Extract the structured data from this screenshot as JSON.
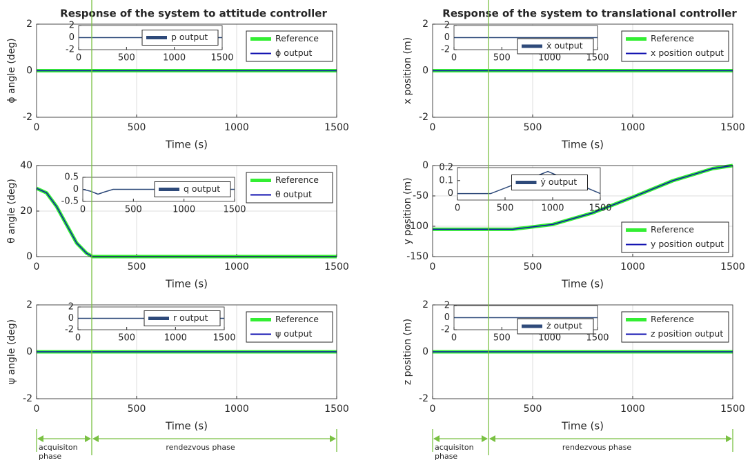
{
  "chart_data": [
    {
      "type": "line",
      "title": "Response of the system to attitude controller",
      "xlabel": "Time (s)",
      "ylabel": "ϕ angle (deg)",
      "xlim": [
        0,
        1500
      ],
      "xticks": [
        0,
        500,
        1000,
        1500
      ],
      "ylim": [
        -2,
        2
      ],
      "yticks": [
        -2,
        0,
        2
      ],
      "grid": true,
      "legend": "upper right",
      "series": [
        {
          "name": "Reference",
          "color": "#33ee33",
          "x": [
            0,
            1500
          ],
          "values": [
            0,
            0
          ]
        },
        {
          "name": "ϕ output",
          "color": "#1010b0",
          "x": [
            0,
            1500
          ],
          "values": [
            0,
            0
          ]
        }
      ]
    },
    {
      "type": "line",
      "xlim": [
        0,
        1500
      ],
      "xticks": [
        0,
        500,
        1000,
        1500
      ],
      "ylim": [
        -2,
        2
      ],
      "yticks": [
        -2,
        0,
        2
      ],
      "grid": false,
      "legend": "center right",
      "series": [
        {
          "name": "p output",
          "color": "#2e4a7a",
          "x": [
            0,
            1500
          ],
          "values": [
            0,
            0
          ]
        }
      ]
    },
    {
      "type": "line",
      "xlabel": "Time (s)",
      "ylabel": "θ angle (deg)",
      "xlim": [
        0,
        1500
      ],
      "xticks": [
        0,
        500,
        1000,
        1500
      ],
      "ylim": [
        0,
        40
      ],
      "yticks": [
        0,
        20,
        40
      ],
      "grid": true,
      "legend": "upper right",
      "series": [
        {
          "name": "Reference",
          "color": "#33ee33",
          "x": [
            0,
            50,
            100,
            150,
            200,
            250,
            280,
            300,
            1500
          ],
          "values": [
            30,
            28,
            22,
            14,
            6,
            1.5,
            0,
            0,
            0
          ]
        },
        {
          "name": "θ output",
          "color": "#1010b0",
          "x": [
            0,
            50,
            100,
            150,
            200,
            250,
            280,
            300,
            1500
          ],
          "values": [
            30,
            28,
            22,
            14,
            6,
            1.5,
            0,
            0,
            0
          ]
        }
      ]
    },
    {
      "type": "line",
      "xlim": [
        0,
        1500
      ],
      "xticks": [
        0,
        500,
        1000,
        1500
      ],
      "ylim": [
        -0.5,
        0.5
      ],
      "yticks": [
        -0.5,
        0,
        0.5
      ],
      "grid": false,
      "legend": "center right",
      "series": [
        {
          "name": "q output",
          "color": "#2e4a7a",
          "x": [
            0,
            80,
            150,
            220,
            300,
            1500
          ],
          "values": [
            0,
            -0.08,
            -0.2,
            -0.1,
            0,
            0
          ]
        }
      ]
    },
    {
      "type": "line",
      "xlabel": "Time (s)",
      "ylabel": "ψ angle (deg)",
      "xlim": [
        0,
        1500
      ],
      "xticks": [
        0,
        500,
        1000,
        1500
      ],
      "ylim": [
        -2,
        2
      ],
      "yticks": [
        -2,
        0,
        2
      ],
      "grid": true,
      "legend": "upper right",
      "series": [
        {
          "name": "Reference",
          "color": "#33ee33",
          "x": [
            0,
            1500
          ],
          "values": [
            0,
            0
          ]
        },
        {
          "name": "ψ output",
          "color": "#1010b0",
          "x": [
            0,
            1500
          ],
          "values": [
            0,
            0
          ]
        }
      ]
    },
    {
      "type": "line",
      "xlim": [
        0,
        1500
      ],
      "xticks": [
        0,
        500,
        1000,
        1500
      ],
      "ylim": [
        -2,
        2
      ],
      "yticks": [
        -2,
        0,
        2
      ],
      "grid": false,
      "legend": "center right",
      "series": [
        {
          "name": "r output",
          "color": "#2e4a7a",
          "x": [
            0,
            1500
          ],
          "values": [
            0,
            0
          ]
        }
      ]
    },
    {
      "type": "line",
      "title": "Response of the system to translational controller",
      "xlabel": "Time (s)",
      "ylabel": "x position (m)",
      "xlim": [
        0,
        1500
      ],
      "xticks": [
        0,
        500,
        1000,
        1500
      ],
      "ylim": [
        -2,
        2
      ],
      "yticks": [
        -2,
        0,
        2
      ],
      "grid": true,
      "legend": "upper right",
      "series": [
        {
          "name": "Reference",
          "color": "#33ee33",
          "x": [
            0,
            1500
          ],
          "values": [
            0,
            0
          ]
        },
        {
          "name": "x position output",
          "color": "#1010b0",
          "x": [
            0,
            1500
          ],
          "values": [
            0,
            0
          ]
        }
      ]
    },
    {
      "type": "line",
      "xlim": [
        0,
        1500
      ],
      "xticks": [
        0,
        500,
        1000,
        1500
      ],
      "ylim": [
        -2,
        2
      ],
      "yticks": [
        -2,
        0,
        2
      ],
      "grid": false,
      "legend": "lower right",
      "series": [
        {
          "name": "ẋ output",
          "color": "#2e4a7a",
          "x": [
            0,
            1500
          ],
          "values": [
            0,
            0
          ]
        }
      ]
    },
    {
      "type": "line",
      "xlabel": "Time (s)",
      "ylabel": "y position (m)",
      "xlim": [
        0,
        1500
      ],
      "xticks": [
        0,
        500,
        1000,
        1500
      ],
      "ylim": [
        -150,
        0
      ],
      "yticks": [
        -150,
        -100,
        -50,
        0
      ],
      "grid": true,
      "legend": "lower right",
      "series": [
        {
          "name": "Reference",
          "color": "#33ee33",
          "x": [
            0,
            400,
            600,
            800,
            1000,
            1200,
            1400,
            1500
          ],
          "values": [
            -105,
            -105,
            -97,
            -78,
            -52,
            -25,
            -5,
            0
          ]
        },
        {
          "name": "y position output",
          "color": "#1010b0",
          "x": [
            0,
            400,
            600,
            800,
            1000,
            1200,
            1400,
            1500
          ],
          "values": [
            -105,
            -105,
            -97,
            -78,
            -52,
            -25,
            -5,
            0
          ]
        }
      ]
    },
    {
      "type": "line",
      "xlim": [
        0,
        1500
      ],
      "xticks": [
        0,
        500,
        1000,
        1500
      ],
      "ylim": [
        -0.05,
        0.2
      ],
      "yticks": [
        0,
        0.1,
        0.2
      ],
      "grid": false,
      "legend": "center",
      "series": [
        {
          "name": "ẏ output",
          "color": "#2e4a7a",
          "x": [
            0,
            350,
            950,
            1500
          ],
          "values": [
            0,
            0,
            0.17,
            0
          ]
        }
      ]
    },
    {
      "type": "line",
      "xlabel": "Time (s)",
      "ylabel": "z position (m)",
      "xlim": [
        0,
        1500
      ],
      "xticks": [
        0,
        500,
        1000,
        1500
      ],
      "ylim": [
        -2,
        2
      ],
      "yticks": [
        -2,
        0,
        2
      ],
      "grid": true,
      "legend": "upper right",
      "series": [
        {
          "name": "Reference",
          "color": "#33ee33",
          "x": [
            0,
            1500
          ],
          "values": [
            0,
            0
          ]
        },
        {
          "name": "z position output",
          "color": "#1010b0",
          "x": [
            0,
            1500
          ],
          "values": [
            0,
            0
          ]
        }
      ]
    },
    {
      "type": "line",
      "xlim": [
        0,
        1500
      ],
      "xticks": [
        0,
        500,
        1000,
        1500
      ],
      "ylim": [
        -2,
        2
      ],
      "yticks": [
        -2,
        0,
        2
      ],
      "grid": false,
      "legend": "lower right",
      "series": [
        {
          "name": "ż output",
          "color": "#2e4a7a",
          "x": [
            0,
            1500
          ],
          "values": [
            0,
            0
          ]
        }
      ]
    }
  ],
  "phase_labels": [
    [
      "acquisiton phase",
      "rendezvous phase"
    ],
    [
      "acquisiton phase",
      "rendezvous phase"
    ]
  ]
}
